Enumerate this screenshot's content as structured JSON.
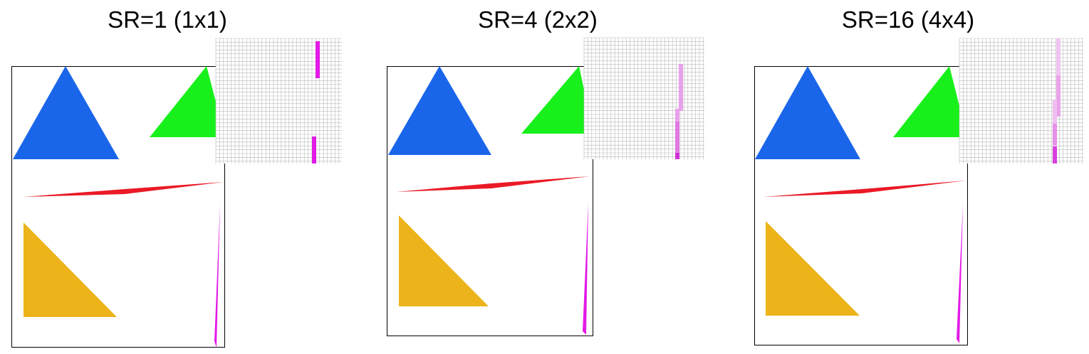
{
  "panels": [
    {
      "title": "SR=1 (1x1)",
      "samples": 1
    },
    {
      "title": "SR=4 (2x2)",
      "samples": 4
    },
    {
      "title": "SR=16 (4x4)",
      "samples": 16
    }
  ],
  "colors": {
    "blue": "#1a66ea",
    "green": "#18f01b",
    "red": "#ea1a26",
    "orange": "#ecb31a",
    "magenta": "#e21ae6",
    "grid": "#b9b9b9"
  }
}
